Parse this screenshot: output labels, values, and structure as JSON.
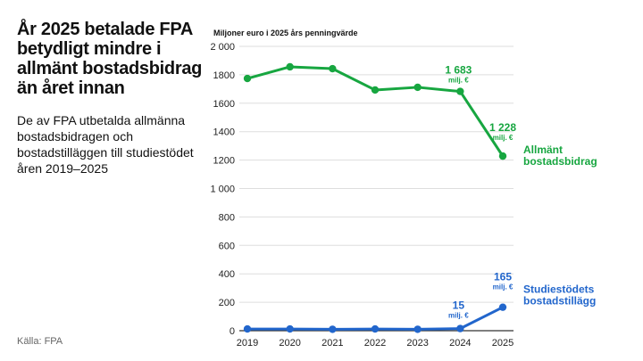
{
  "title": "År 2025 betalade FPA betydligt mindre i allmänt bostadsbidrag än året innan",
  "subtitle": "De av FPA utbetalda allmänna bostadsbidragen och bostadstilläggen till studiestödet åren 2019–2025",
  "source": "Källa: FPA",
  "chart_data": {
    "type": "line",
    "ylabel": "Miljoner euro i 2025 års penningvärde",
    "ylim": [
      0,
      2000
    ],
    "yticks": [
      "0",
      "200",
      "400",
      "600",
      "800",
      "1 000",
      "1200",
      "1400",
      "1600",
      "1800",
      "2 000"
    ],
    "x": [
      "2019",
      "2020",
      "2021",
      "2022",
      "2023",
      "2024",
      "2025"
    ],
    "grid": true,
    "series": [
      {
        "name": "Allmänt bostadsbidrag",
        "name_lines": [
          "Allmänt",
          "bostadsbidrag"
        ],
        "color": "#17a640",
        "values": [
          1774,
          1856,
          1843,
          1693,
          1712,
          1683,
          1228
        ],
        "annotations": [
          {
            "year": "2024",
            "value": "1 683",
            "unit": "milj. €"
          },
          {
            "year": "2025",
            "value": "1 228",
            "unit": "milj. €"
          }
        ]
      },
      {
        "name": "Studiestödets bostadstillägg",
        "name_lines": [
          "Studiestödets",
          "bostadstillägg"
        ],
        "color": "#2266cc",
        "values": [
          12,
          12,
          10,
          12,
          10,
          15,
          165
        ],
        "annotations": [
          {
            "year": "2024",
            "value": "15",
            "unit": "milj. €"
          },
          {
            "year": "2025",
            "value": "165",
            "unit": "milj. €"
          }
        ]
      }
    ]
  }
}
